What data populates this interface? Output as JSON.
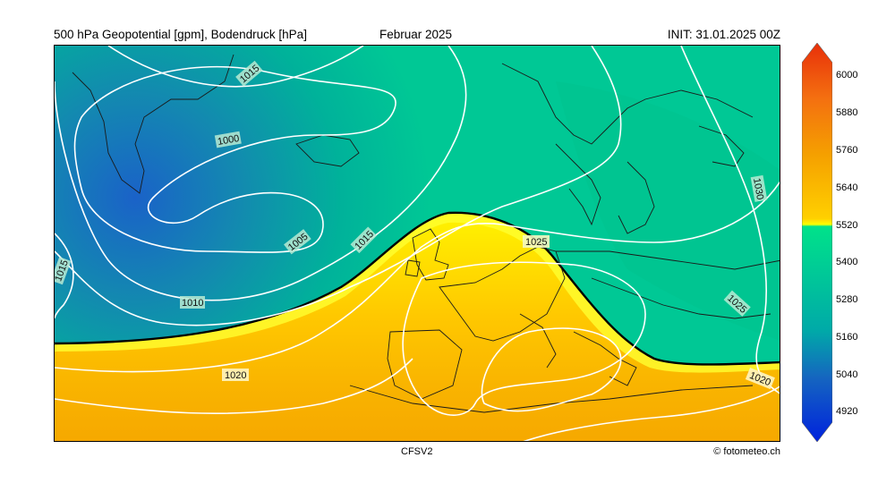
{
  "header": {
    "title_left": "500 hPa Geopotential [gpm], Bodendruck [hPa]",
    "title_center": "Februar 2025",
    "title_right": "INIT: 31.01.2025 00Z"
  },
  "footer": {
    "model": "CFSV2",
    "credit": "© fotometeo.ch"
  },
  "map": {
    "isobar_labels": [
      "1015",
      "1000",
      "1005",
      "1015",
      "1010",
      "1020",
      "1025",
      "1030",
      "1025",
      "1020",
      "1015"
    ],
    "isobar_color": "#ffffff",
    "boundary_line_color": "#000000"
  },
  "colorbar": {
    "ticks": [
      "6000",
      "5880",
      "5760",
      "5640",
      "5520",
      "5400",
      "5280",
      "5160",
      "5040",
      "4920"
    ],
    "colors": {
      "top": "#e8300a",
      "orange": "#f5a000",
      "yellow": "#ffff00",
      "green": "#00e28a",
      "teal": "#00aa9a",
      "blue": "#1565c0",
      "bottom": "#0022dd"
    }
  }
}
